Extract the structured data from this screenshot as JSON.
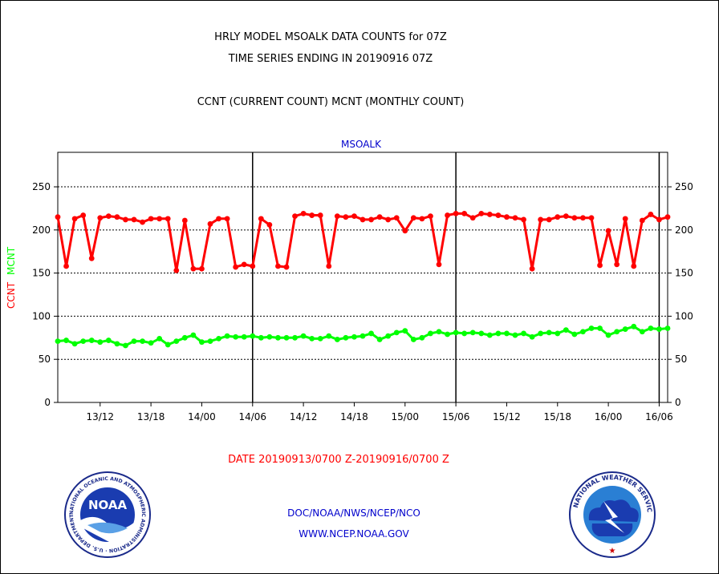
{
  "title_line1": "HRLY MODEL MSOALK DATA COUNTS for 07Z",
  "title_line2": "TIME SERIES ENDING IN 20190916 07Z",
  "subtitle": "CCNT (CURRENT COUNT) MCNT (MONTHLY COUNT)",
  "date_range": "DATE 20190913/0700 Z-20190916/0700 Z",
  "footer_line1": "DOC/NOAA/NWS/NCEP/NCO",
  "footer_line2": "WWW.NCEP.NOAA.GOV",
  "noaa_logo_text": "NOAA",
  "noaa_ring_text": "NATIONAL OCEANIC AND ATMOSPHERIC ADMINISTRATION · U.S. DEPARTMENT OF COMMERCE",
  "nws_ring_text": "NATIONAL WEATHER SERVICE",
  "colors": {
    "ccnt": "#ff0000",
    "mcnt": "#00ff00",
    "axis": "#000000",
    "footer": "#0000cc"
  },
  "chart_data": {
    "type": "line",
    "title": "MSOALK",
    "ylabel_ccnt": "CCNT",
    "ylabel_mcnt": "MCNT",
    "ylim": [
      0,
      290
    ],
    "yticks": [
      0,
      50,
      100,
      150,
      200,
      250
    ],
    "xlim": [
      0,
      72
    ],
    "xtick_labels": [
      "13/12",
      "13/18",
      "14/00",
      "14/06",
      "14/12",
      "14/18",
      "15/00",
      "15/06",
      "15/12",
      "15/18",
      "16/00",
      "16/06"
    ],
    "xtick_hours": [
      5,
      11,
      17,
      23,
      29,
      35,
      41,
      47,
      53,
      59,
      65,
      71
    ],
    "day_boundaries": [
      23,
      47,
      71
    ],
    "grid": "horizontal dashed",
    "series": [
      {
        "name": "CCNT",
        "color": "#ff0000",
        "values": [
          215,
          158,
          213,
          217,
          167,
          214,
          216,
          215,
          212,
          212,
          209,
          213,
          213,
          213,
          153,
          211,
          155,
          155,
          207,
          213,
          213,
          157,
          160,
          158,
          213,
          206,
          158,
          157,
          216,
          219,
          217,
          217,
          158,
          216,
          215,
          216,
          212,
          212,
          215,
          212,
          214,
          199,
          214,
          213,
          216,
          160,
          217,
          219,
          219,
          214,
          219,
          218,
          217,
          215,
          214,
          212,
          155,
          212,
          212,
          215,
          216,
          214,
          214,
          214,
          159,
          199,
          160,
          213,
          158,
          211,
          218,
          212,
          215
        ]
      },
      {
        "name": "MCNT",
        "color": "#00ff00",
        "values": [
          71,
          72,
          68,
          71,
          72,
          70,
          72,
          68,
          66,
          71,
          71,
          69,
          74,
          67,
          71,
          75,
          78,
          70,
          71,
          74,
          77,
          76,
          76,
          77,
          75,
          76,
          75,
          75,
          75,
          77,
          74,
          74,
          77,
          73,
          75,
          76,
          77,
          80,
          73,
          77,
          81,
          83,
          73,
          75,
          80,
          82,
          79,
          81,
          80,
          81,
          80,
          78,
          80,
          80,
          78,
          80,
          76,
          80,
          81,
          80,
          84,
          79,
          82,
          86,
          86,
          78,
          82,
          85,
          88,
          82,
          86,
          85,
          86
        ]
      }
    ]
  }
}
